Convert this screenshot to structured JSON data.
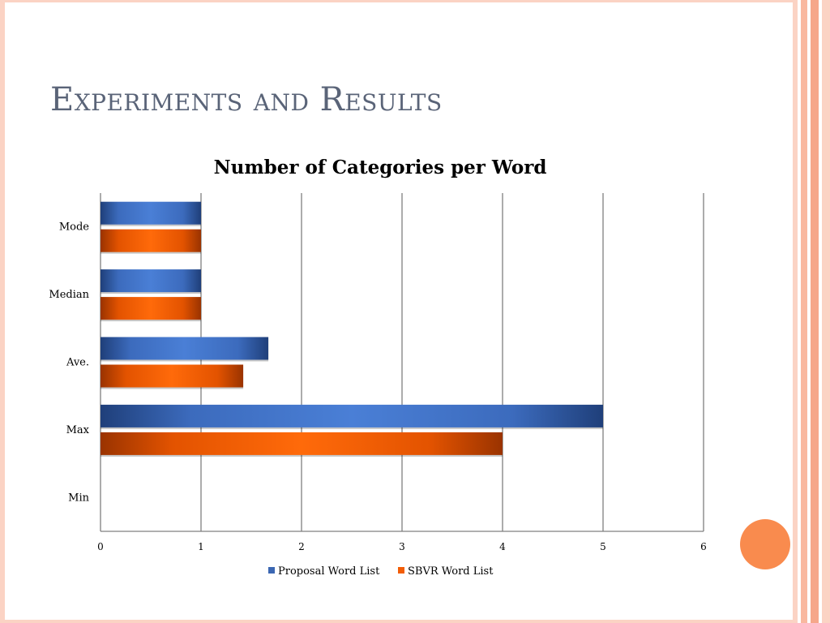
{
  "slide": {
    "title": "Experiments and Results"
  },
  "chart_data": {
    "type": "bar",
    "orientation": "horizontal",
    "title": "Number of Categories per Word",
    "xlabel": "",
    "ylabel": "",
    "categories": [
      "Mode",
      "Median",
      "Ave.",
      "Max",
      "Min"
    ],
    "series": [
      {
        "name": "Proposal Word List",
        "values": [
          1,
          1,
          1.67,
          5,
          0
        ],
        "color": "#3b67b2"
      },
      {
        "name": "SBVR Word List",
        "values": [
          1,
          1,
          1.42,
          4,
          0
        ],
        "color": "#f25d06"
      }
    ],
    "xlim": [
      0,
      6
    ],
    "xticks": [
      "0",
      "1",
      "2",
      "3",
      "4",
      "5",
      "6"
    ],
    "grid": true,
    "legend_position": "bottom"
  },
  "colors": {
    "title_text": "#5a6478",
    "frame": "#fbd3c4",
    "accent_circle": "#f98b4e",
    "gridline": "#808080"
  }
}
